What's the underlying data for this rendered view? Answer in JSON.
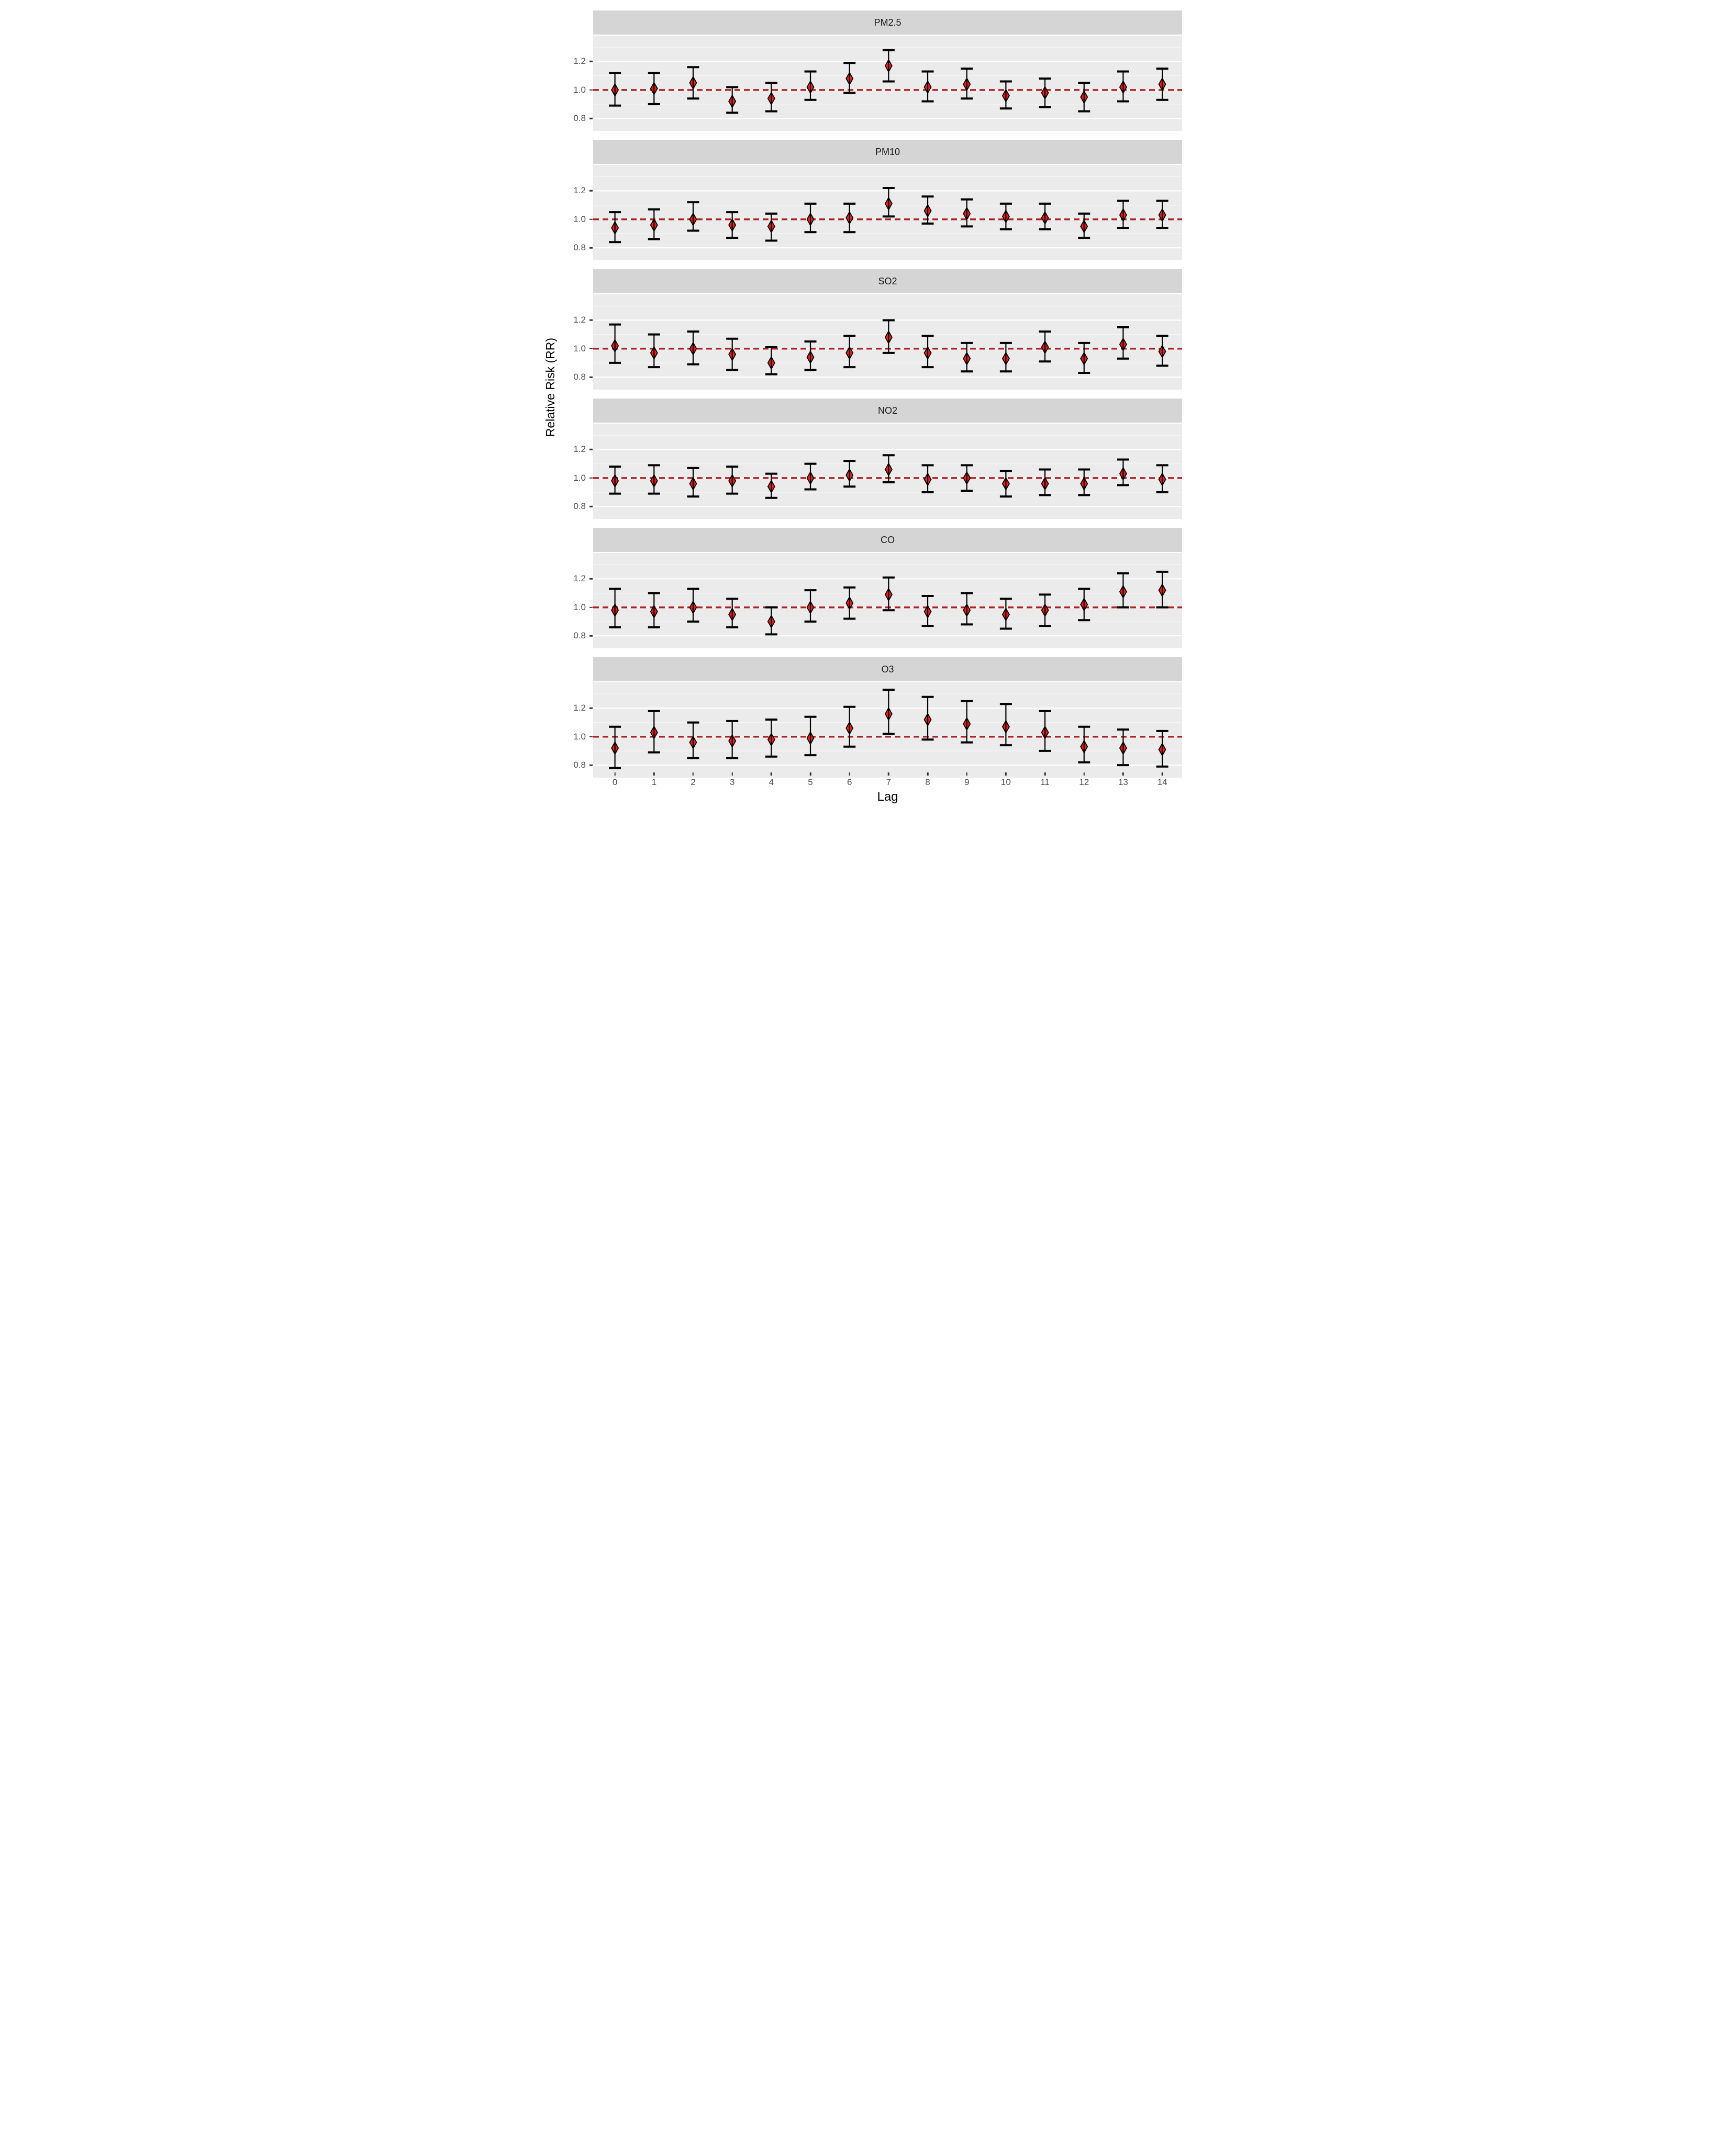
{
  "chart_data": {
    "type": "scatter",
    "subtype": "errorbar-forest-faceted",
    "xlabel": "Lag",
    "ylabel": "Relative Risk (RR)",
    "x": [
      0,
      1,
      2,
      3,
      4,
      5,
      6,
      7,
      8,
      9,
      10,
      11,
      12,
      13,
      14
    ],
    "x_tick_labels": [
      "0",
      "1",
      "2",
      "3",
      "4",
      "5",
      "6",
      "7",
      "8",
      "9",
      "10",
      "11",
      "12",
      "13",
      "14"
    ],
    "yticks": [
      1.2,
      1.0,
      0.8
    ],
    "y_tick_labels": [
      "1.2",
      "1.0",
      "0.8"
    ],
    "minor_yticks": [
      1.3,
      1.1,
      0.9
    ],
    "ylim": [
      0.712,
      1.382
    ],
    "reference_line_y": 1.0,
    "grid": true,
    "legend": "none",
    "panels": [
      {
        "title": "PM2.5",
        "rr": [
          1.0,
          1.01,
          1.05,
          0.92,
          0.94,
          1.02,
          1.08,
          1.17,
          1.02,
          1.04,
          0.96,
          0.98,
          0.95,
          1.02,
          1.04
        ],
        "lower": [
          0.89,
          0.9,
          0.94,
          0.84,
          0.85,
          0.93,
          0.98,
          1.06,
          0.92,
          0.94,
          0.87,
          0.88,
          0.85,
          0.92,
          0.93
        ],
        "upper": [
          1.12,
          1.12,
          1.16,
          1.02,
          1.05,
          1.13,
          1.19,
          1.28,
          1.13,
          1.15,
          1.06,
          1.08,
          1.05,
          1.13,
          1.15
        ]
      },
      {
        "title": "PM10",
        "rr": [
          0.94,
          0.96,
          1.0,
          0.96,
          0.95,
          1.0,
          1.01,
          1.11,
          1.06,
          1.04,
          1.02,
          1.01,
          0.95,
          1.03,
          1.03
        ],
        "lower": [
          0.84,
          0.86,
          0.92,
          0.87,
          0.85,
          0.91,
          0.91,
          1.02,
          0.97,
          0.95,
          0.93,
          0.93,
          0.87,
          0.94,
          0.94
        ],
        "upper": [
          1.05,
          1.07,
          1.12,
          1.05,
          1.04,
          1.11,
          1.11,
          1.22,
          1.16,
          1.14,
          1.11,
          1.11,
          1.04,
          1.13,
          1.13
        ]
      },
      {
        "title": "SO2",
        "rr": [
          1.02,
          0.97,
          1.0,
          0.96,
          0.9,
          0.94,
          0.97,
          1.08,
          0.97,
          0.93,
          0.93,
          1.01,
          0.93,
          1.03,
          0.98
        ],
        "lower": [
          0.9,
          0.87,
          0.89,
          0.85,
          0.82,
          0.85,
          0.87,
          0.97,
          0.87,
          0.84,
          0.84,
          0.91,
          0.83,
          0.93,
          0.88
        ],
        "upper": [
          1.17,
          1.1,
          1.12,
          1.07,
          1.01,
          1.05,
          1.09,
          1.2,
          1.09,
          1.04,
          1.04,
          1.12,
          1.04,
          1.15,
          1.09
        ]
      },
      {
        "title": "NO2",
        "rr": [
          0.98,
          0.98,
          0.96,
          0.98,
          0.94,
          1.0,
          1.02,
          1.06,
          0.99,
          1.0,
          0.96,
          0.96,
          0.96,
          1.03,
          0.99
        ],
        "lower": [
          0.89,
          0.89,
          0.87,
          0.89,
          0.86,
          0.92,
          0.94,
          0.97,
          0.9,
          0.91,
          0.87,
          0.88,
          0.88,
          0.95,
          0.9
        ],
        "upper": [
          1.08,
          1.09,
          1.07,
          1.08,
          1.03,
          1.1,
          1.12,
          1.16,
          1.09,
          1.09,
          1.05,
          1.06,
          1.06,
          1.13,
          1.09
        ]
      },
      {
        "title": "CO",
        "rr": [
          0.98,
          0.97,
          1.0,
          0.95,
          0.9,
          1.0,
          1.03,
          1.09,
          0.97,
          0.98,
          0.95,
          0.98,
          1.02,
          1.11,
          1.12
        ],
        "lower": [
          0.86,
          0.86,
          0.9,
          0.86,
          0.81,
          0.9,
          0.92,
          0.98,
          0.87,
          0.88,
          0.85,
          0.87,
          0.91,
          1.0,
          1.0
        ],
        "upper": [
          1.13,
          1.1,
          1.13,
          1.06,
          1.0,
          1.12,
          1.14,
          1.21,
          1.08,
          1.1,
          1.06,
          1.09,
          1.13,
          1.24,
          1.25
        ]
      },
      {
        "title": "O3",
        "rr": [
          0.92,
          1.03,
          0.96,
          0.97,
          0.98,
          0.99,
          1.06,
          1.16,
          1.12,
          1.09,
          1.07,
          1.03,
          0.93,
          0.92,
          0.91
        ],
        "lower": [
          0.78,
          0.89,
          0.85,
          0.85,
          0.86,
          0.87,
          0.93,
          1.02,
          0.98,
          0.96,
          0.94,
          0.9,
          0.82,
          0.8,
          0.79
        ],
        "upper": [
          1.07,
          1.18,
          1.1,
          1.11,
          1.12,
          1.14,
          1.21,
          1.33,
          1.28,
          1.25,
          1.23,
          1.18,
          1.07,
          1.05,
          1.04
        ]
      }
    ],
    "colors": {
      "point_fill": "#ed1c1c",
      "point_outline": "#000000",
      "errorbar": "#000000",
      "reference_line": "#b02020",
      "panel_background": "#ebebeb",
      "strip_background": "#d5d5d5",
      "major_gridline": "#ffffff",
      "minor_gridline": "#f6f6f6",
      "tick_label": "#4d4d4d",
      "strip_text": "#1a1a1a"
    }
  }
}
